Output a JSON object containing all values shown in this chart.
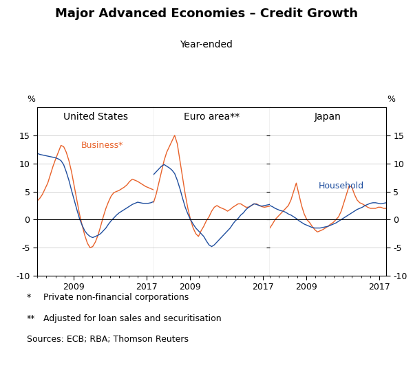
{
  "title": "Major Advanced Economies – Credit Growth",
  "subtitle": "Year-ended",
  "panel_titles": [
    "United States",
    "Euro area**",
    "Japan"
  ],
  "ylim": [
    -10,
    20
  ],
  "yticks": [
    -10,
    -5,
    0,
    5,
    10,
    15
  ],
  "footnote1": "*  Private non-financial corporations",
  "footnote2": "** Adjusted for loan sales and securitisation",
  "footnote3": "Sources: ECB; RBA; Thomson Reuters",
  "business_label": "Business*",
  "household_label": "Household",
  "business_color": "#E8622A",
  "household_color": "#1F4E9E",
  "us_business": [
    3.3,
    3.8,
    4.5,
    5.5,
    6.5,
    8.0,
    9.5,
    10.8,
    12.0,
    13.2,
    13.0,
    12.0,
    10.5,
    8.5,
    6.0,
    3.5,
    1.0,
    -1.0,
    -2.8,
    -4.2,
    -5.0,
    -4.8,
    -4.0,
    -2.8,
    -1.2,
    0.5,
    2.0,
    3.2,
    4.2,
    4.8,
    5.0,
    5.2,
    5.5,
    5.8,
    6.2,
    6.8,
    7.2,
    7.0,
    6.8,
    6.5,
    6.2,
    5.9,
    5.7,
    5.5,
    5.3
  ],
  "us_household": [
    11.8,
    11.6,
    11.5,
    11.4,
    11.3,
    11.2,
    11.1,
    11.0,
    10.8,
    10.5,
    9.8,
    8.5,
    7.0,
    5.2,
    3.5,
    1.8,
    0.2,
    -1.0,
    -2.0,
    -2.6,
    -3.0,
    -3.2,
    -3.0,
    -2.8,
    -2.5,
    -2.0,
    -1.5,
    -0.8,
    -0.2,
    0.3,
    0.8,
    1.2,
    1.5,
    1.8,
    2.1,
    2.4,
    2.7,
    2.9,
    3.1,
    3.0,
    2.9,
    2.9,
    2.9,
    3.0,
    3.2
  ],
  "eu_business": [
    3.0,
    4.5,
    6.5,
    8.5,
    10.5,
    12.0,
    13.0,
    14.0,
    15.0,
    13.5,
    10.5,
    7.5,
    4.5,
    2.0,
    0.0,
    -1.5,
    -2.5,
    -3.0,
    -2.0,
    -1.2,
    -0.2,
    0.5,
    1.5,
    2.2,
    2.5,
    2.2,
    2.0,
    1.8,
    1.5,
    1.8,
    2.2,
    2.5,
    2.8,
    2.8,
    2.5,
    2.2,
    2.2,
    2.5,
    2.8,
    2.8,
    2.5,
    2.3,
    2.2,
    2.3,
    2.4
  ],
  "eu_household": [
    8.0,
    8.5,
    9.0,
    9.5,
    9.8,
    9.5,
    9.2,
    8.8,
    8.2,
    7.0,
    5.5,
    3.8,
    2.2,
    1.0,
    0.0,
    -0.8,
    -1.5,
    -2.0,
    -2.5,
    -3.0,
    -3.8,
    -4.5,
    -4.8,
    -4.5,
    -4.0,
    -3.5,
    -3.0,
    -2.5,
    -2.0,
    -1.5,
    -0.8,
    -0.2,
    0.2,
    0.8,
    1.2,
    1.8,
    2.2,
    2.5,
    2.8,
    2.7,
    2.5,
    2.4,
    2.5,
    2.6,
    2.7
  ],
  "jp_business": [
    -1.5,
    -0.8,
    0.0,
    0.5,
    1.0,
    1.5,
    2.0,
    2.5,
    3.5,
    5.0,
    6.5,
    4.5,
    2.5,
    1.0,
    0.0,
    -0.5,
    -1.2,
    -1.8,
    -2.2,
    -2.0,
    -1.8,
    -1.5,
    -1.2,
    -0.8,
    -0.5,
    0.0,
    0.5,
    1.5,
    3.0,
    4.5,
    6.0,
    5.8,
    4.5,
    3.5,
    3.0,
    2.8,
    2.5,
    2.2,
    2.0,
    2.0,
    2.0,
    2.2,
    2.2,
    2.0,
    2.0
  ],
  "jp_household": [
    2.5,
    2.3,
    2.0,
    1.8,
    1.6,
    1.5,
    1.3,
    1.0,
    0.8,
    0.5,
    0.2,
    -0.2,
    -0.5,
    -0.8,
    -1.0,
    -1.2,
    -1.4,
    -1.5,
    -1.5,
    -1.5,
    -1.4,
    -1.3,
    -1.2,
    -1.0,
    -0.8,
    -0.6,
    -0.3,
    0.0,
    0.3,
    0.6,
    0.9,
    1.2,
    1.5,
    1.8,
    2.0,
    2.2,
    2.5,
    2.7,
    2.9,
    3.0,
    3.0,
    2.9,
    2.8,
    2.9,
    3.0
  ],
  "x_start_year": 2005.0,
  "x_end_year": 2017.75,
  "n_points": 45
}
